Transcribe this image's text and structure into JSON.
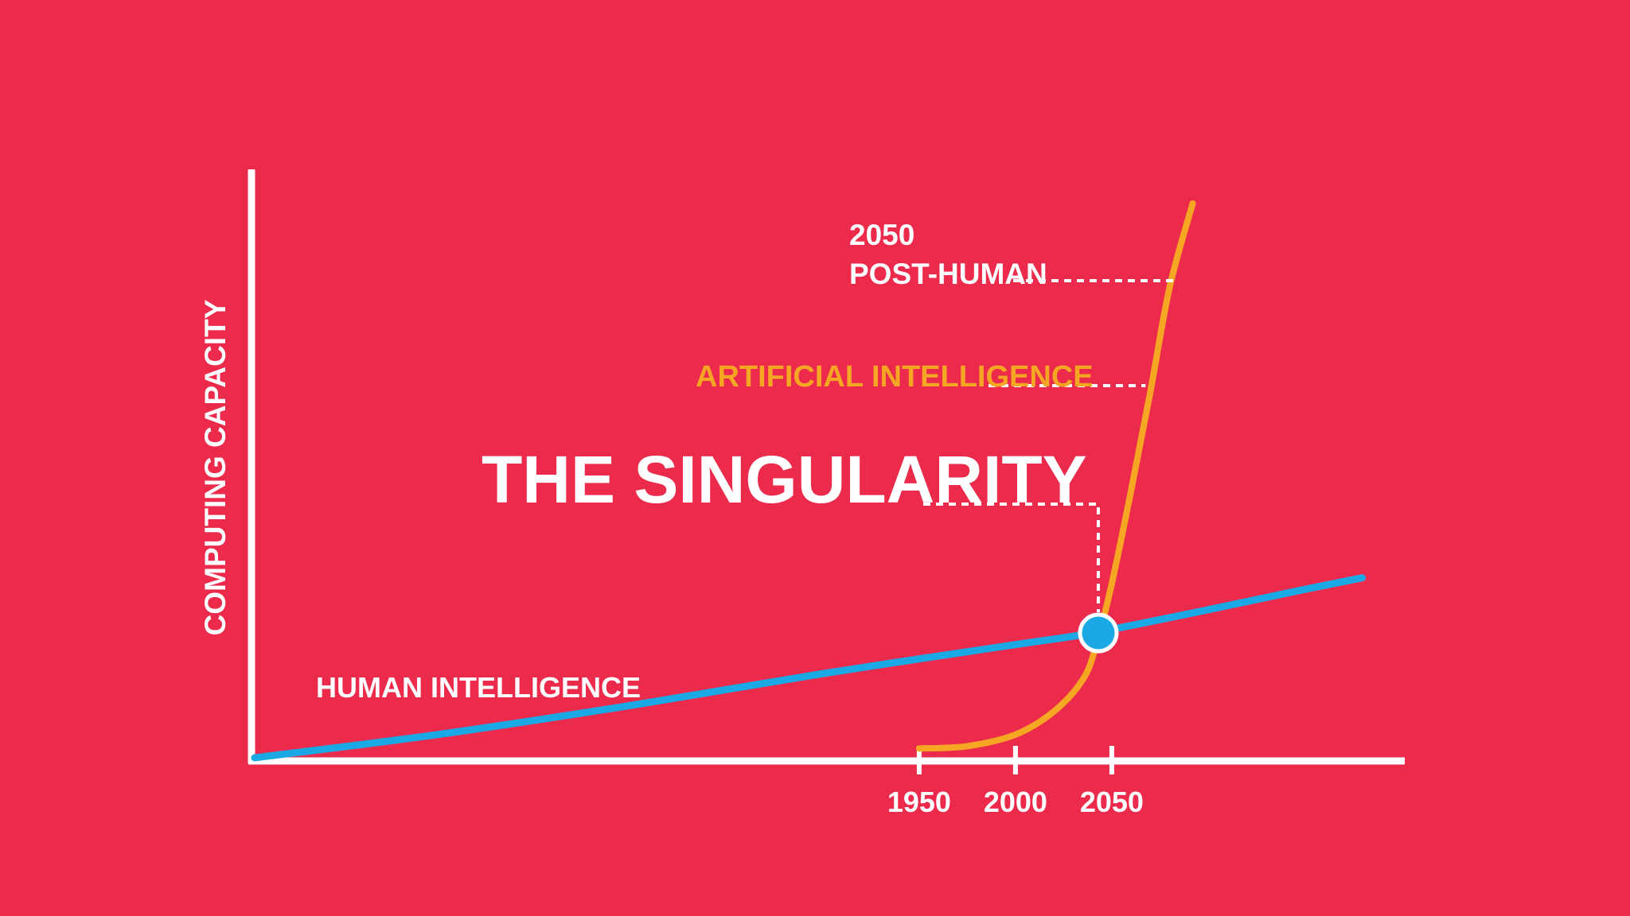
{
  "colors": {
    "background": "#EC2A4C",
    "axis": "#FFFFFF",
    "human_line": "#1BA9E6",
    "ai_line": "#F5A623",
    "text": "#FFFFFF",
    "ai_label": "#F5A623"
  },
  "chart_data": {
    "type": "line",
    "title": "",
    "ylabel": "COMPUTING CAPACITY",
    "xlabel": "",
    "xticks": [
      1950,
      2000,
      2050
    ],
    "xlim": [
      1605,
      2205
    ],
    "ylim": [
      0,
      100
    ],
    "grid": false,
    "series": [
      {
        "name": "HUMAN INTELLIGENCE",
        "points": [
          [
            1605,
            0
          ],
          [
            1700,
            4
          ],
          [
            1800,
            9
          ],
          [
            1900,
            14.5
          ],
          [
            2000,
            19.5
          ],
          [
            2040,
            21.5
          ],
          [
            2100,
            25.5
          ],
          [
            2150,
            29
          ],
          [
            2180,
            31
          ]
        ]
      },
      {
        "name": "ARTIFICIAL INTELLIGENCE",
        "points": [
          [
            1950,
            1.6
          ],
          [
            1975,
            2
          ],
          [
            2000,
            4
          ],
          [
            2020,
            8
          ],
          [
            2035,
            13.5
          ],
          [
            2042,
            19.5
          ],
          [
            2050,
            30
          ],
          [
            2060,
            46
          ],
          [
            2070,
            63
          ],
          [
            2080,
            81
          ],
          [
            2092,
            95.5
          ]
        ]
      }
    ],
    "annotations": [
      {
        "id": "singularity",
        "text": "THE SINGULARITY",
        "x": 2043,
        "y": 21.5
      },
      {
        "id": "ai",
        "text": "ARTIFICIAL INTELLIGENCE",
        "x": 2070,
        "y": 63
      },
      {
        "id": "posthuman",
        "year": "2050",
        "text": "POST-HUMAN",
        "x": 2085,
        "y": 81
      }
    ]
  }
}
